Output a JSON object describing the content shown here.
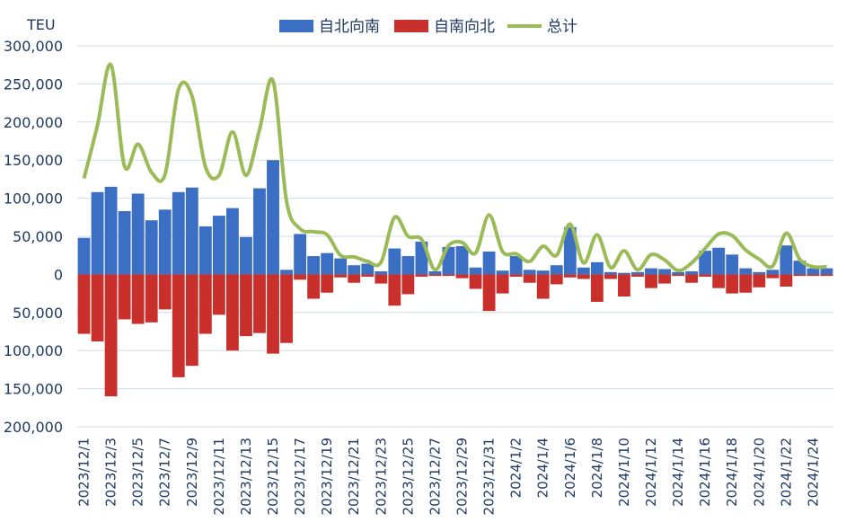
{
  "unit_label": "TEU",
  "colors": {
    "north_south": "#3a6fc4",
    "south_north": "#c9302c",
    "total": "#9bbb59",
    "grid": "#d0dcea",
    "text": "#1f3864"
  },
  "chart_data": {
    "type": "bar",
    "ylabel": "TEU",
    "ylim": [
      -200000,
      300000
    ],
    "yticks": [
      300000,
      250000,
      200000,
      150000,
      100000,
      50000,
      0,
      -50000,
      -100000,
      -150000,
      -200000
    ],
    "ytick_labels": [
      "300,000",
      "250,000",
      "200,000",
      "150,000",
      "100,000",
      "50,000",
      "0",
      "50,000",
      "100,000",
      "150,000",
      "200,000"
    ],
    "legend_position": "top",
    "grid": true,
    "categories": [
      "2023/12/1",
      "2023/12/2",
      "2023/12/3",
      "2023/12/4",
      "2023/12/5",
      "2023/12/6",
      "2023/12/7",
      "2023/12/8",
      "2023/12/9",
      "2023/12/10",
      "2023/12/11",
      "2023/12/12",
      "2023/12/13",
      "2023/12/14",
      "2023/12/15",
      "2023/12/16",
      "2023/12/17",
      "2023/12/18",
      "2023/12/19",
      "2023/12/20",
      "2023/12/21",
      "2023/12/22",
      "2023/12/23",
      "2023/12/24",
      "2023/12/25",
      "2023/12/26",
      "2023/12/27",
      "2023/12/28",
      "2023/12/29",
      "2023/12/30",
      "2023/12/31",
      "2024/1/1",
      "2024/1/2",
      "2024/1/3",
      "2024/1/4",
      "2024/1/5",
      "2024/1/6",
      "2024/1/7",
      "2024/1/8",
      "2024/1/9",
      "2024/1/10",
      "2024/1/11",
      "2024/1/12",
      "2024/1/13",
      "2024/1/14",
      "2024/1/15",
      "2024/1/16",
      "2024/1/17",
      "2024/1/18",
      "2024/1/19",
      "2024/1/20",
      "2024/1/21",
      "2024/1/22",
      "2024/1/23",
      "2024/1/24",
      "2024/1/25"
    ],
    "xtick_labels": [
      "2023/12/1",
      "2023/12/3",
      "2023/12/5",
      "2023/12/7",
      "2023/12/9",
      "2023/12/11",
      "2023/12/13",
      "2023/12/15",
      "2023/12/17",
      "2023/12/19",
      "2023/12/21",
      "2023/12/23",
      "2023/12/25",
      "2023/12/27",
      "2023/12/29",
      "2023/12/31",
      "2024/1/2",
      "2024/1/4",
      "2024/1/6",
      "2024/1/8",
      "2024/1/10",
      "2024/1/12",
      "2024/1/14",
      "2024/1/16",
      "2024/1/18",
      "2024/1/20",
      "2024/1/22",
      "2024/1/24"
    ],
    "series": [
      {
        "name": "自北向南",
        "type": "bar",
        "values": [
          48000,
          108000,
          115000,
          83000,
          106000,
          71000,
          85000,
          108000,
          114000,
          63000,
          77000,
          87000,
          49000,
          113000,
          150000,
          6000,
          53000,
          24000,
          28000,
          21000,
          12000,
          14000,
          4000,
          34000,
          24000,
          43000,
          4000,
          36000,
          37000,
          9000,
          30000,
          5000,
          24000,
          6000,
          5000,
          12000,
          62000,
          9000,
          16000,
          3000,
          2000,
          3000,
          8000,
          7000,
          3000,
          4000,
          31000,
          35000,
          26000,
          8000,
          3000,
          6000,
          38000,
          18000,
          8000,
          8000
        ]
      },
      {
        "name": "自南向北",
        "type": "bar",
        "values": [
          -78000,
          -88000,
          -160000,
          -59000,
          -65000,
          -63000,
          -46000,
          -135000,
          -120000,
          -78000,
          -53000,
          -100000,
          -81000,
          -77000,
          -104000,
          -90000,
          -7000,
          -32000,
          -24000,
          -4000,
          -11000,
          -3000,
          -12000,
          -41000,
          -26000,
          -3000,
          -2000,
          -2000,
          -5000,
          -19000,
          -48000,
          -25000,
          -3000,
          -11000,
          -32000,
          -13000,
          -4000,
          -6000,
          -36000,
          -6000,
          -29000,
          -3000,
          -18000,
          -12000,
          -2000,
          -11000,
          -3000,
          -18000,
          -25000,
          -24000,
          -17000,
          -5000,
          -16000,
          -2000,
          -2000,
          -2000
        ]
      },
      {
        "name": "总计",
        "type": "line",
        "values": [
          126000,
          196000,
          275000,
          142000,
          171000,
          134000,
          131000,
          243000,
          234000,
          141000,
          130000,
          187000,
          130000,
          190000,
          254000,
          96000,
          60000,
          56000,
          52000,
          25000,
          23000,
          17000,
          16000,
          75000,
          50000,
          46000,
          6000,
          38000,
          42000,
          28000,
          78000,
          30000,
          27000,
          17000,
          37000,
          25000,
          66000,
          15000,
          52000,
          9000,
          31000,
          6000,
          26000,
          19000,
          5000,
          15000,
          34000,
          53000,
          51000,
          32000,
          20000,
          11000,
          54000,
          20000,
          10000,
          10000
        ]
      }
    ]
  }
}
